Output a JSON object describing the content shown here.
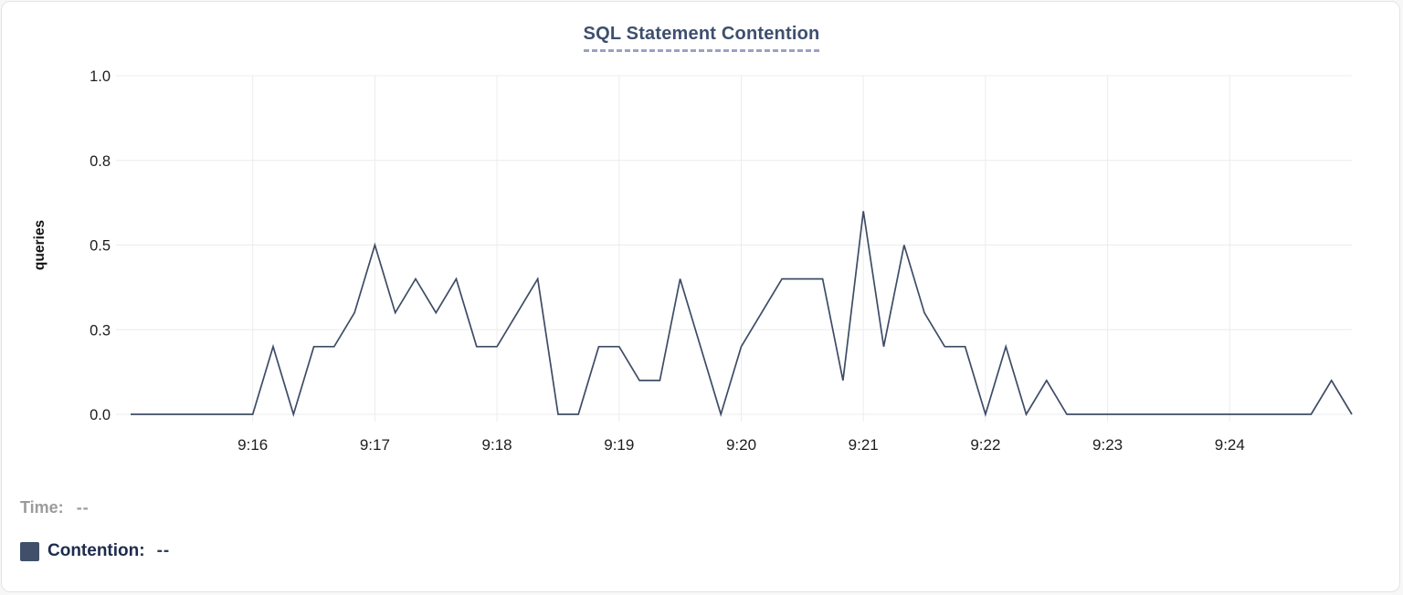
{
  "chart": {
    "title": "SQL Statement Contention"
  },
  "legend": {
    "time_label": "Time:",
    "time_value": "--",
    "contention_label": "Contention:",
    "contention_value": "--",
    "swatch_color": "#40506b"
  },
  "chart_data": {
    "type": "line",
    "title": "SQL Statement Contention",
    "xlabel": "",
    "ylabel": "queries",
    "ylim": [
      0,
      1.0
    ],
    "grid": true,
    "legend_position": "bottom-left",
    "ytick_values": [
      0,
      0.25,
      0.5,
      0.75,
      1.0
    ],
    "ytick_labels": [
      "0.0",
      "0.3",
      "0.5",
      "0.8",
      "1.0"
    ],
    "xtick_labels": [
      {
        "label": "9:16",
        "index": 6
      },
      {
        "label": "9:17",
        "index": 12
      },
      {
        "label": "9:18",
        "index": 18
      },
      {
        "label": "9:19",
        "index": 24
      },
      {
        "label": "9:20",
        "index": 30
      },
      {
        "label": "9:21",
        "index": 36
      },
      {
        "label": "9:22",
        "index": 42
      },
      {
        "label": "9:23",
        "index": 48
      },
      {
        "label": "9:24",
        "index": 54
      }
    ],
    "x": [
      "9:15:00",
      "9:15:10",
      "9:15:20",
      "9:15:30",
      "9:15:40",
      "9:15:50",
      "9:16:00",
      "9:16:10",
      "9:16:20",
      "9:16:30",
      "9:16:40",
      "9:16:50",
      "9:17:00",
      "9:17:10",
      "9:17:20",
      "9:17:30",
      "9:17:40",
      "9:17:50",
      "9:18:00",
      "9:18:10",
      "9:18:20",
      "9:18:30",
      "9:18:40",
      "9:18:50",
      "9:19:00",
      "9:19:10",
      "9:19:20",
      "9:19:30",
      "9:19:40",
      "9:19:50",
      "9:20:00",
      "9:20:10",
      "9:20:20",
      "9:20:30",
      "9:20:40",
      "9:20:50",
      "9:21:00",
      "9:21:10",
      "9:21:20",
      "9:21:30",
      "9:21:40",
      "9:21:50",
      "9:22:00",
      "9:22:10",
      "9:22:20",
      "9:22:30",
      "9:22:40",
      "9:22:50",
      "9:23:00",
      "9:23:10",
      "9:23:20",
      "9:23:30",
      "9:23:40",
      "9:23:50",
      "9:24:00",
      "9:24:10",
      "9:24:20",
      "9:24:30",
      "9:24:40",
      "9:24:50",
      "9:25:00"
    ],
    "series": [
      {
        "name": "Contention",
        "color": "#3e4c66",
        "values": [
          0,
          0,
          0,
          0,
          0,
          0,
          0,
          0.2,
          0,
          0.2,
          0.2,
          0.3,
          0.5,
          0.3,
          0.4,
          0.3,
          0.4,
          0.2,
          0.2,
          0.3,
          0.4,
          0,
          0,
          0.2,
          0.2,
          0.1,
          0.1,
          0.4,
          0.2,
          0,
          0.2,
          0.3,
          0.4,
          0.4,
          0.4,
          0.1,
          0.6,
          0.2,
          0.5,
          0.3,
          0.2,
          0.2,
          0,
          0.2,
          0,
          0.1,
          0,
          0,
          0,
          0,
          0,
          0,
          0,
          0,
          0,
          0,
          0,
          0,
          0,
          0.1,
          0
        ]
      }
    ],
    "grid_color": "#ececec",
    "tick_text_color": "#1d1d1d"
  }
}
